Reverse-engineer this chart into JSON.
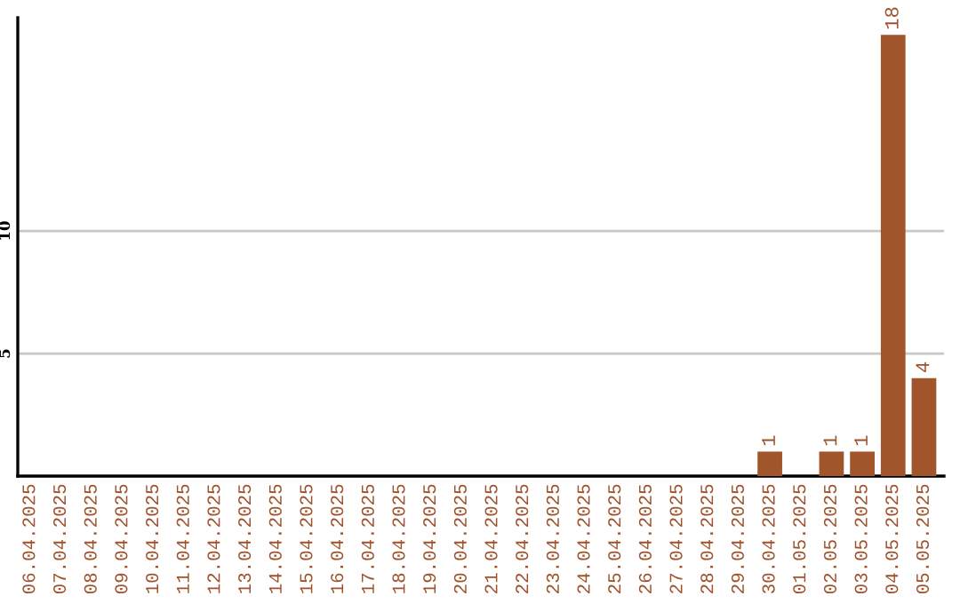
{
  "chart_data": {
    "type": "bar",
    "categories": [
      "06.04.2025",
      "07.04.2025",
      "08.04.2025",
      "09.04.2025",
      "10.04.2025",
      "11.04.2025",
      "12.04.2025",
      "13.04.2025",
      "14.04.2025",
      "15.04.2025",
      "16.04.2025",
      "17.04.2025",
      "18.04.2025",
      "19.04.2025",
      "20.04.2025",
      "21.04.2025",
      "22.04.2025",
      "23.04.2025",
      "24.04.2025",
      "25.04.2025",
      "26.04.2025",
      "27.04.2025",
      "28.04.2025",
      "29.04.2025",
      "30.04.2025",
      "01.05.2025",
      "02.05.2025",
      "03.05.2025",
      "04.05.2025",
      "05.05.2025"
    ],
    "values": [
      0,
      0,
      0,
      0,
      0,
      0,
      0,
      0,
      0,
      0,
      0,
      0,
      0,
      0,
      0,
      0,
      0,
      0,
      0,
      0,
      0,
      0,
      0,
      0,
      1,
      0,
      1,
      1,
      18,
      4
    ],
    "value_labels": [
      null,
      null,
      null,
      null,
      null,
      null,
      null,
      null,
      null,
      null,
      null,
      null,
      null,
      null,
      null,
      null,
      null,
      null,
      null,
      null,
      null,
      null,
      null,
      null,
      "1",
      null,
      "1",
      "1",
      "18",
      "4"
    ],
    "color": "#a0562a",
    "ylim": [
      0,
      18.7
    ],
    "yticks": [
      5,
      10
    ],
    "grid": "y",
    "legend": false
  }
}
